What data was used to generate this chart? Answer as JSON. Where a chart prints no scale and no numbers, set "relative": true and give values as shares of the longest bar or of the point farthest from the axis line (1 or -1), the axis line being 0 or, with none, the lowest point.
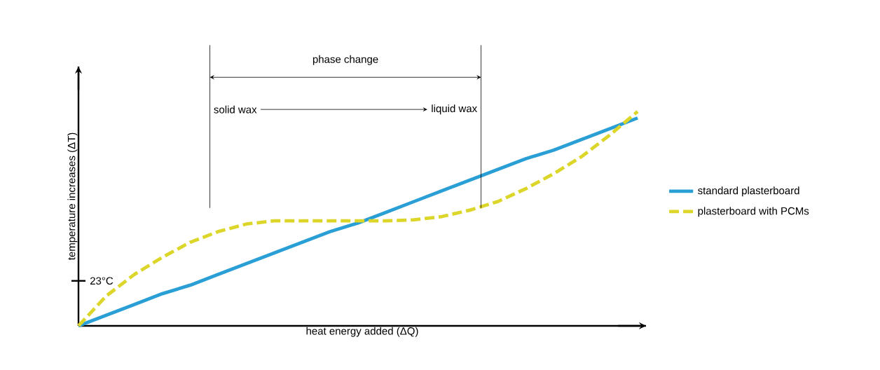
{
  "chart_data": {
    "type": "line",
    "relative": true,
    "xlabel": "heat energy added (ΔQ)",
    "ylabel": "temperature increases (ΔT)",
    "categories": [
      null,
      null,
      null,
      null,
      null,
      null,
      null,
      null,
      null,
      null,
      null,
      null,
      null,
      null,
      null,
      null,
      null,
      null,
      null,
      null,
      null
    ],
    "series": [
      {
        "name": "standard plasterboard",
        "color": "#2a9fd6",
        "line_style": "solid",
        "values": [
          0,
          0.05,
          0.1,
          0.15,
          0.19,
          0.24,
          0.29,
          0.34,
          0.39,
          0.44,
          0.48,
          0.53,
          0.58,
          0.63,
          0.68,
          0.73,
          0.78,
          0.82,
          0.87,
          0.92,
          0.97
        ]
      },
      {
        "name": "plasterboard with PCMs",
        "color": "#ddd62a",
        "line_style": "dashed",
        "values": [
          0,
          0.14,
          0.24,
          0.32,
          0.39,
          0.44,
          0.475,
          0.49,
          0.49,
          0.49,
          0.49,
          0.49,
          0.495,
          0.51,
          0.54,
          0.58,
          0.64,
          0.71,
          0.79,
          0.89,
          1
        ]
      }
    ],
    "ref_lines": [
      {
        "axis": "y",
        "value": 0.21,
        "label": "23°C"
      }
    ],
    "annotations": [
      "phase change",
      "solid wax",
      "liquid wax"
    ],
    "legend": "right"
  }
}
